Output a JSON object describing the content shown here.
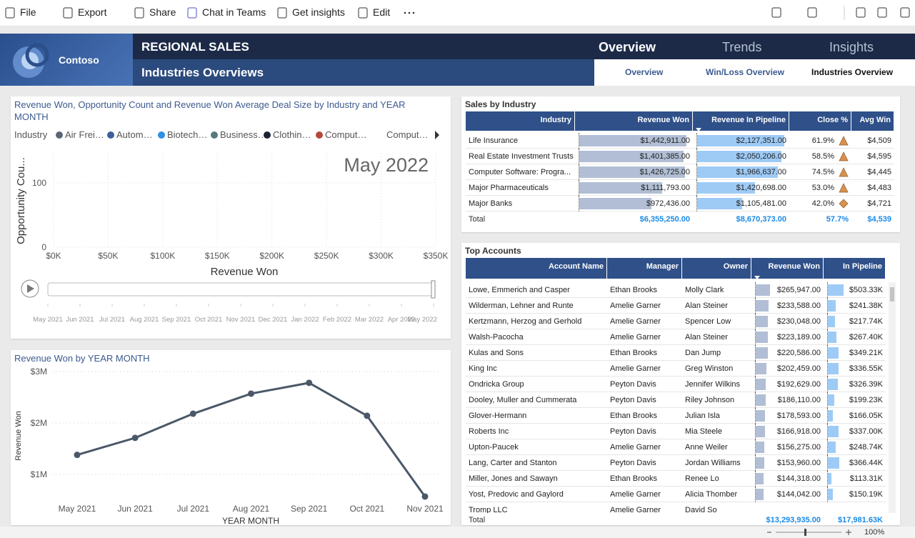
{
  "toolbar": {
    "items": [
      "File",
      "Export",
      "Share",
      "Chat in Teams",
      "Get insights",
      "Edit"
    ]
  },
  "header": {
    "logo": "Contoso",
    "title": "REGIONAL SALES",
    "subtitle": "Industries Overviews",
    "nav": [
      "Overview",
      "Trends",
      "Insights"
    ],
    "subnav": [
      "Overview",
      "Win/Loss Overview",
      "Industries Overview"
    ]
  },
  "chart_data": [
    {
      "type": "scatter",
      "title": "Revenue Won, Opportunity Count and Revenue Won Average Deal Size by Industry and YEAR MONTH",
      "legend_title": "Industry",
      "series": [
        {
          "name": "Air Frei…",
          "color": "#5b6573"
        },
        {
          "name": "Autom…",
          "color": "#3f5e9c"
        },
        {
          "name": "Biotech…",
          "color": "#2d8fe5"
        },
        {
          "name": "Business…",
          "color": "#56797f"
        },
        {
          "name": "Clothin…",
          "color": "#1b2033"
        },
        {
          "name": "Comput…",
          "color": "#b5483a"
        },
        {
          "name": "Comput…"
        }
      ],
      "annotation": "May 2022",
      "y_label": "Opportunity Cou...",
      "x_label": "Revenue Won",
      "xlim": [
        0,
        350000
      ],
      "xticks": [
        {
          "value": 0,
          "label": "$0K"
        },
        {
          "value": 50000,
          "label": "$50K"
        },
        {
          "value": 100000,
          "label": "$100K"
        },
        {
          "value": 150000,
          "label": "$150K"
        },
        {
          "value": 200000,
          "label": "$200K"
        },
        {
          "value": 250000,
          "label": "$250K"
        },
        {
          "value": 300000,
          "label": "$300K"
        },
        {
          "value": 350000,
          "label": "$350K"
        }
      ],
      "ylim": [
        0,
        140
      ],
      "yticks": [
        0,
        100
      ],
      "grid": true,
      "play_axis": [
        "May 2021",
        "Jun 2021",
        "Jul 2021",
        "Aug 2021",
        "Sep 2021",
        "Oct 2021",
        "Nov 2021",
        "Dec 2021",
        "Jan 2022",
        "Feb 2022",
        "Mar 2022",
        "Apr 2022",
        "May 2022"
      ]
    },
    {
      "type": "line",
      "title": "Revenue Won by YEAR MONTH",
      "x_label": "YEAR MONTH",
      "y_label": "Revenue Won",
      "color": "#4a5868",
      "categories": [
        "May 2021",
        "Jun 2021",
        "Jul 2021",
        "Aug 2021",
        "Sep 2021",
        "Oct 2021",
        "Nov 2021"
      ],
      "values": [
        1380000,
        1710000,
        2180000,
        2570000,
        2780000,
        2140000,
        570000
      ],
      "ylim": [
        500000,
        3000000
      ],
      "yticks": [
        {
          "value": 1000000,
          "label": "$1M"
        },
        {
          "value": 2000000,
          "label": "$2M"
        },
        {
          "value": 3000000,
          "label": "$3M"
        }
      ],
      "grid": true
    }
  ],
  "sales_by_industry": {
    "title": "Sales by Industry",
    "columns": [
      "Industry",
      "Revenue Won",
      "Revenue In Pipeline",
      "Close %",
      "Avg Win"
    ],
    "rows": [
      [
        "Life Insurance",
        "$1,442,911.00",
        "$2,127,351.00",
        "61.9%",
        "$4,509"
      ],
      [
        "Real Estate Investment Trusts",
        "$1,401,385.00",
        "$2,050,206.00",
        "58.5%",
        "$4,595"
      ],
      [
        "Computer Software: Progra...",
        "$1,426,725.00",
        "$1,966,637.00",
        "74.5%",
        "$4,445"
      ],
      [
        "Major Pharmaceuticals",
        "$1,111,793.00",
        "$1,420,698.00",
        "53.0%",
        "$4,483"
      ],
      [
        "Major Banks",
        "$972,436.00",
        "$1,105,481.00",
        "42.0%",
        "$4,721"
      ]
    ],
    "total": [
      "Total",
      "$6,355,250.00",
      "$8,670,373.00",
      "57.7%",
      "$4,539"
    ]
  },
  "top_accounts": {
    "title": "Top Accounts",
    "columns": [
      "Account Name",
      "Manager",
      "Owner",
      "Revenue Won",
      "In Pipeline"
    ],
    "rows": [
      [
        "Lowe, Emmerich and Casper",
        "Ethan Brooks",
        "Molly Clark",
        "$265,947.00",
        "$503.33K"
      ],
      [
        "Wilderman, Lehner and Runte",
        "Amelie Garner",
        "Alan Steiner",
        "$233,588.00",
        "$241.38K"
      ],
      [
        "Kertzmann, Herzog and Gerhold",
        "Amelie Garner",
        "Spencer Low",
        "$230,048.00",
        "$217.74K"
      ],
      [
        "Walsh-Pacocha",
        "Amelie Garner",
        "Alan Steiner",
        "$223,189.00",
        "$267.40K"
      ],
      [
        "Kulas and Sons",
        "Ethan Brooks",
        "Dan Jump",
        "$220,586.00",
        "$349.21K"
      ],
      [
        "King Inc",
        "Amelie Garner",
        "Greg Winston",
        "$202,459.00",
        "$336.55K"
      ],
      [
        "Ondricka Group",
        "Peyton Davis",
        "Jennifer Wilkins",
        "$192,629.00",
        "$326.39K"
      ],
      [
        "Dooley, Muller and Cummerata",
        "Peyton Davis",
        "Riley Johnson",
        "$186,110.00",
        "$199.23K"
      ],
      [
        "Glover-Hermann",
        "Ethan Brooks",
        "Julian Isla",
        "$178,593.00",
        "$166.05K"
      ],
      [
        "Roberts Inc",
        "Peyton Davis",
        "Mia Steele",
        "$166,918.00",
        "$337.00K"
      ],
      [
        "Upton-Paucek",
        "Amelie Garner",
        "Anne Weiler",
        "$156,275.00",
        "$248.74K"
      ],
      [
        "Lang, Carter and Stanton",
        "Peyton Davis",
        "Jordan Williams",
        "$153,960.00",
        "$366.44K"
      ],
      [
        "Miller, Jones and Sawayn",
        "Ethan Brooks",
        "Renee Lo",
        "$144,318.00",
        "$113.31K"
      ],
      [
        "Yost, Predovic and Gaylord",
        "Amelie Garner",
        "Alicia Thomber",
        "$144,042.00",
        "$150.19K"
      ],
      [
        "Tromp LLC",
        "Amelie Garner",
        "David So"
      ]
    ],
    "total": [
      "Total",
      "$13,293,935.00",
      "$17,981.63K"
    ]
  },
  "footer": {
    "zoom": "100%"
  }
}
